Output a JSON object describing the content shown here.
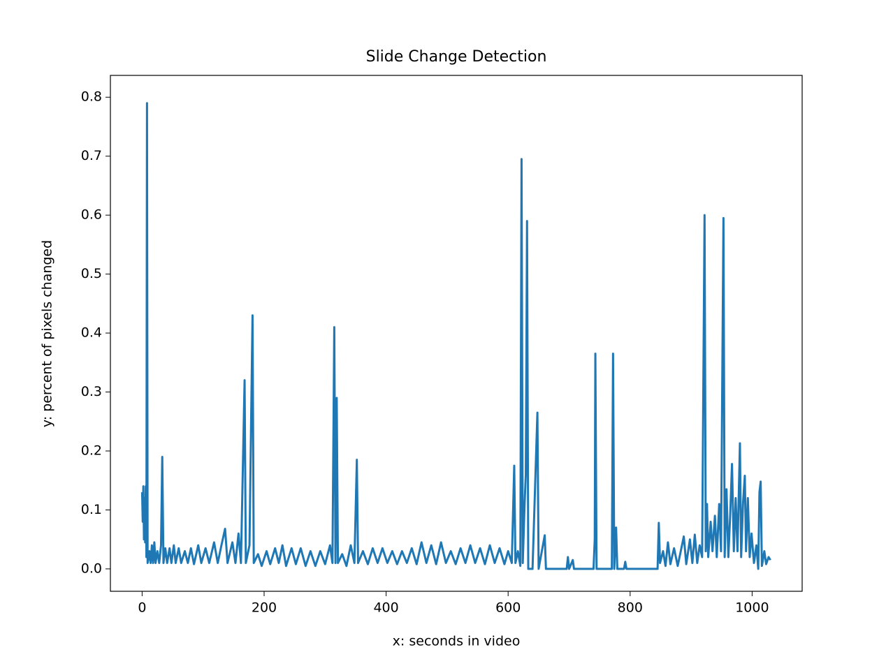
{
  "chart_data": {
    "type": "line",
    "title": "Slide Change Detection",
    "xlabel": "x: seconds in video",
    "ylabel": "y: percent of pixels changed",
    "color": "#1f77b4",
    "xlim": [
      -52,
      1082
    ],
    "ylim": [
      -0.038,
      0.837
    ],
    "xticks": [
      0,
      200,
      400,
      600,
      800,
      1000
    ],
    "yticks": [
      {
        "value": 0,
        "label": "0.0"
      },
      0.1,
      0.2,
      0.3,
      0.4,
      0.5,
      0.6,
      0.7,
      0.8
    ],
    "x": [
      0,
      1,
      2,
      3,
      4,
      5,
      6,
      7,
      8,
      9,
      10,
      12,
      14,
      16,
      18,
      20,
      22,
      25,
      28,
      31,
      33,
      35,
      38,
      41,
      45,
      48,
      52,
      55,
      60,
      64,
      70,
      75,
      80,
      85,
      92,
      97,
      104,
      110,
      118,
      124,
      130,
      136,
      140,
      148,
      153,
      158,
      162,
      168,
      170,
      176,
      181,
      183,
      190,
      196,
      204,
      210,
      218,
      224,
      230,
      236,
      245,
      252,
      260,
      268,
      276,
      284,
      292,
      300,
      308,
      312,
      315,
      317,
      319,
      321,
      328,
      335,
      342,
      348,
      352,
      354,
      362,
      370,
      378,
      386,
      394,
      402,
      410,
      418,
      426,
      434,
      442,
      450,
      458,
      466,
      474,
      482,
      490,
      498,
      506,
      514,
      522,
      530,
      538,
      546,
      554,
      562,
      570,
      578,
      586,
      594,
      600,
      606,
      610,
      612,
      616,
      620,
      622,
      624,
      627,
      629,
      631,
      633,
      640,
      648,
      650,
      660,
      662,
      696,
      698,
      700,
      706,
      708,
      740,
      742,
      743,
      745,
      770,
      772,
      774,
      777,
      779,
      790,
      792,
      794,
      845,
      847,
      849,
      854,
      858,
      862,
      866,
      872,
      878,
      884,
      888,
      892,
      898,
      902,
      906,
      910,
      914,
      918,
      922,
      924,
      926,
      928,
      932,
      935,
      939,
      942,
      946,
      949,
      953,
      955,
      958,
      961,
      964,
      967,
      970,
      973,
      976,
      980,
      982,
      985,
      988,
      990,
      993,
      996,
      999,
      1003,
      1007,
      1010,
      1012,
      1014,
      1016,
      1020,
      1023,
      1027,
      1030
    ],
    "values": [
      0.13,
      0.08,
      0.14,
      0.05,
      0.12,
      0.045,
      0.14,
      0.02,
      0.79,
      0.01,
      0.015,
      0.03,
      0.01,
      0.04,
      0.01,
      0.045,
      0.01,
      0.03,
      0.01,
      0.04,
      0.19,
      0.01,
      0.035,
      0.01,
      0.035,
      0.01,
      0.04,
      0.01,
      0.035,
      0.01,
      0.03,
      0.01,
      0.035,
      0.008,
      0.04,
      0.01,
      0.035,
      0.01,
      0.045,
      0.01,
      0.04,
      0.068,
      0.01,
      0.045,
      0.01,
      0.06,
      0.01,
      0.32,
      0.01,
      0.04,
      0.43,
      0.01,
      0.025,
      0.005,
      0.03,
      0.008,
      0.035,
      0.01,
      0.04,
      0.005,
      0.035,
      0.008,
      0.035,
      0.005,
      0.03,
      0.005,
      0.03,
      0.008,
      0.04,
      0.01,
      0.41,
      0.01,
      0.29,
      0.01,
      0.025,
      0.005,
      0.04,
      0.01,
      0.185,
      0.01,
      0.03,
      0.008,
      0.035,
      0.01,
      0.035,
      0.01,
      0.03,
      0.008,
      0.03,
      0.01,
      0.035,
      0.008,
      0.045,
      0.01,
      0.04,
      0.008,
      0.045,
      0.01,
      0.03,
      0.008,
      0.035,
      0.01,
      0.04,
      0.01,
      0.035,
      0.008,
      0.04,
      0.01,
      0.035,
      0.008,
      0.03,
      0.01,
      0.175,
      0.01,
      0.03,
      0.005,
      0.695,
      0.01,
      0.11,
      0.16,
      0.59,
      0,
      0,
      0.265,
      0,
      0.057,
      0,
      0,
      0.02,
      0,
      0.015,
      0,
      0,
      0.05,
      0.365,
      0,
      0,
      0.365,
      0,
      0.07,
      0,
      0,
      0.012,
      0,
      0,
      0.078,
      0.01,
      0.03,
      0.005,
      0.045,
      0.008,
      0.035,
      0.005,
      0.035,
      0.055,
      0.008,
      0.05,
      0.01,
      0.058,
      0.01,
      0.04,
      0.02,
      0.6,
      0.03,
      0.11,
      0.02,
      0.08,
      0.03,
      0.09,
      0.02,
      0.11,
      0.03,
      0.595,
      0.02,
      0.135,
      0.02,
      0.09,
      0.178,
      0.03,
      0.12,
      0.03,
      0.213,
      0.02,
      0.11,
      0.158,
      0.03,
      0.12,
      0.02,
      0.06,
      0.01,
      0.04,
      0,
      0.13,
      0.148,
      0.005,
      0.03,
      0.008,
      0.02,
      0.015
    ]
  }
}
